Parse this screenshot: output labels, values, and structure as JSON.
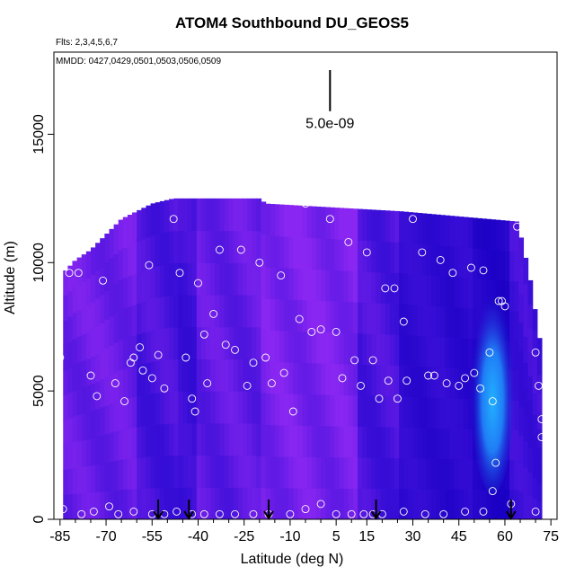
{
  "chart_data": {
    "type": "heatmap",
    "title": "ATOM4 Southbound DU_GEOS5",
    "flights_note": "Flts: 2,3,4,5,6,7",
    "dates_note": "MMDD: 0427,0429,0501,0503,0506,0509",
    "xlabel": "Latitude (deg N)",
    "ylabel": "Altitude (m)",
    "xlim": [
      -87,
      77
    ],
    "ylim": [
      0,
      18200
    ],
    "xticks": [
      -85,
      -70,
      -55,
      -40,
      -25,
      -10,
      5,
      15,
      30,
      45,
      60,
      75
    ],
    "xtick_labels": [
      "-85",
      "-70",
      "-55",
      "-40",
      "-25",
      "-10",
      "5",
      "15",
      "30",
      "45",
      "60",
      "75"
    ],
    "yticks": [
      0,
      5000,
      10000,
      15000
    ],
    "ytick_labels": [
      "0",
      "5000",
      "10000",
      "15000"
    ],
    "scale_bar_label": "5.0e-09",
    "scale_bar_altitude_range": [
      15900,
      17500
    ],
    "scale_bar_latitude": 3,
    "colors": {
      "low": "#8a26f2",
      "mid": "#3a0fd8",
      "deep": "#1a00c4",
      "high": "#20a8ff",
      "marker": "#ffffff",
      "arrow": "#000000"
    },
    "top_altitude_profile": [
      {
        "lat": -84,
        "alt": 9600
      },
      {
        "lat": -80,
        "alt": 10100
      },
      {
        "lat": -75,
        "alt": 10500
      },
      {
        "lat": -70,
        "alt": 11100
      },
      {
        "lat": -65,
        "alt": 11700
      },
      {
        "lat": -60,
        "alt": 12000
      },
      {
        "lat": -55,
        "alt": 12300
      },
      {
        "lat": -48,
        "alt": 12500
      },
      {
        "lat": -20,
        "alt": 12500
      },
      {
        "lat": -18,
        "alt": 12300
      },
      {
        "lat": 26,
        "alt": 12000
      },
      {
        "lat": 64,
        "alt": 11600
      },
      {
        "lat": 66,
        "alt": 10600
      },
      {
        "lat": 68,
        "alt": 9500
      },
      {
        "lat": 70,
        "alt": 8000
      },
      {
        "lat": 72,
        "alt": 6500
      }
    ],
    "columns": [
      {
        "from": -84,
        "to": -60,
        "value": 0.25
      },
      {
        "from": -60,
        "to": -47,
        "value": 0.45
      },
      {
        "from": -47,
        "to": -40,
        "value": 0.55
      },
      {
        "from": -40,
        "to": -20,
        "value": 0.3
      },
      {
        "from": -20,
        "to": 12,
        "value": 0.15
      },
      {
        "from": 12,
        "to": 26,
        "value": 0.45
      },
      {
        "from": 26,
        "to": 40,
        "value": 0.7
      },
      {
        "from": 40,
        "to": 50,
        "value": 0.75
      },
      {
        "from": 50,
        "to": 62,
        "value": 0.9
      },
      {
        "from": 62,
        "to": 72,
        "value": 0.55
      }
    ],
    "plume": {
      "lat_center": 56,
      "lat_halfwidth": 7,
      "alt_from": 1000,
      "alt_to": 9000,
      "peak_alt": 4000,
      "value": 1.0
    },
    "sample_points": [
      {
        "lat": -85,
        "alt": 6300
      },
      {
        "lat": -82,
        "alt": 9600
      },
      {
        "lat": -79,
        "alt": 9600
      },
      {
        "lat": -75,
        "alt": 5600
      },
      {
        "lat": -73,
        "alt": 4800
      },
      {
        "lat": -71,
        "alt": 9300
      },
      {
        "lat": -67,
        "alt": 5300
      },
      {
        "lat": -64,
        "alt": 4600
      },
      {
        "lat": -62,
        "alt": 6100
      },
      {
        "lat": -61,
        "alt": 6300
      },
      {
        "lat": -59,
        "alt": 6700
      },
      {
        "lat": -58,
        "alt": 5800
      },
      {
        "lat": -56,
        "alt": 9900
      },
      {
        "lat": -55,
        "alt": 5500
      },
      {
        "lat": -53,
        "alt": 6400
      },
      {
        "lat": -51,
        "alt": 5100
      },
      {
        "lat": -48,
        "alt": 11700
      },
      {
        "lat": -46,
        "alt": 9600
      },
      {
        "lat": -44,
        "alt": 6300
      },
      {
        "lat": -42,
        "alt": 4700
      },
      {
        "lat": -41,
        "alt": 4200
      },
      {
        "lat": -40,
        "alt": 9200
      },
      {
        "lat": -38,
        "alt": 7200
      },
      {
        "lat": -37,
        "alt": 5300
      },
      {
        "lat": -35,
        "alt": 8000
      },
      {
        "lat": -33,
        "alt": 10500
      },
      {
        "lat": -31,
        "alt": 6800
      },
      {
        "lat": -28,
        "alt": 6600
      },
      {
        "lat": -26,
        "alt": 10500
      },
      {
        "lat": -24,
        "alt": 5200
      },
      {
        "lat": -22,
        "alt": 6100
      },
      {
        "lat": -20,
        "alt": 10000
      },
      {
        "lat": -18,
        "alt": 6300
      },
      {
        "lat": -16,
        "alt": 5300
      },
      {
        "lat": -13,
        "alt": 9500
      },
      {
        "lat": -12,
        "alt": 5700
      },
      {
        "lat": -9,
        "alt": 4200
      },
      {
        "lat": -7,
        "alt": 7800
      },
      {
        "lat": -5,
        "alt": 12300
      },
      {
        "lat": -3,
        "alt": 7300
      },
      {
        "lat": 0,
        "alt": 7400
      },
      {
        "lat": 3,
        "alt": 11700
      },
      {
        "lat": 5,
        "alt": 7300
      },
      {
        "lat": 7,
        "alt": 5500
      },
      {
        "lat": 9,
        "alt": 10800
      },
      {
        "lat": 11,
        "alt": 6200
      },
      {
        "lat": 13,
        "alt": 5200
      },
      {
        "lat": 15,
        "alt": 10400
      },
      {
        "lat": 17,
        "alt": 6200
      },
      {
        "lat": 19,
        "alt": 4700
      },
      {
        "lat": 21,
        "alt": 9000
      },
      {
        "lat": 22,
        "alt": 5400
      },
      {
        "lat": 24,
        "alt": 9000
      },
      {
        "lat": 25,
        "alt": 4700
      },
      {
        "lat": 27,
        "alt": 7700
      },
      {
        "lat": 28,
        "alt": 5400
      },
      {
        "lat": 30,
        "alt": 11700
      },
      {
        "lat": 33,
        "alt": 10400
      },
      {
        "lat": 35,
        "alt": 5600
      },
      {
        "lat": 37,
        "alt": 5600
      },
      {
        "lat": 39,
        "alt": 10100
      },
      {
        "lat": 41,
        "alt": 5300
      },
      {
        "lat": 43,
        "alt": 9600
      },
      {
        "lat": 45,
        "alt": 5200
      },
      {
        "lat": 47,
        "alt": 5500
      },
      {
        "lat": 49,
        "alt": 9800
      },
      {
        "lat": 50,
        "alt": 5700
      },
      {
        "lat": 52,
        "alt": 5100
      },
      {
        "lat": 53,
        "alt": 9700
      },
      {
        "lat": 55,
        "alt": 6500
      },
      {
        "lat": 56,
        "alt": 4600
      },
      {
        "lat": 57,
        "alt": 2200
      },
      {
        "lat": 58,
        "alt": 8500
      },
      {
        "lat": 59,
        "alt": 8500
      },
      {
        "lat": 60,
        "alt": 8300
      },
      {
        "lat": 56,
        "alt": 1100
      },
      {
        "lat": 62,
        "alt": 600
      },
      {
        "lat": 64,
        "alt": 11400
      },
      {
        "lat": 66,
        "alt": 11400
      },
      {
        "lat": 70,
        "alt": 6500
      },
      {
        "lat": 71,
        "alt": 5200
      },
      {
        "lat": 72,
        "alt": 3900
      },
      {
        "lat": 72,
        "alt": 3200
      },
      {
        "lat": -84,
        "alt": 400
      },
      {
        "lat": -78,
        "alt": 200
      },
      {
        "lat": -74,
        "alt": 300
      },
      {
        "lat": -69,
        "alt": 500
      },
      {
        "lat": -66,
        "alt": 200
      },
      {
        "lat": -61,
        "alt": 300
      },
      {
        "lat": -55,
        "alt": 200
      },
      {
        "lat": -51,
        "alt": 200
      },
      {
        "lat": -47,
        "alt": 300
      },
      {
        "lat": -42,
        "alt": 200
      },
      {
        "lat": -38,
        "alt": 200
      },
      {
        "lat": -33,
        "alt": 200
      },
      {
        "lat": -28,
        "alt": 200
      },
      {
        "lat": -22,
        "alt": 200
      },
      {
        "lat": -17,
        "alt": 200
      },
      {
        "lat": -10,
        "alt": 200
      },
      {
        "lat": -5,
        "alt": 400
      },
      {
        "lat": 0,
        "alt": 600
      },
      {
        "lat": 5,
        "alt": 200
      },
      {
        "lat": 10,
        "alt": 200
      },
      {
        "lat": 14,
        "alt": 200
      },
      {
        "lat": 17,
        "alt": 200
      },
      {
        "lat": 20,
        "alt": 200
      },
      {
        "lat": 27,
        "alt": 300
      },
      {
        "lat": 34,
        "alt": 200
      },
      {
        "lat": 40,
        "alt": 200
      },
      {
        "lat": 47,
        "alt": 300
      },
      {
        "lat": 53,
        "alt": 300
      },
      {
        "lat": 70,
        "alt": 300
      }
    ],
    "flight_markers_lat": [
      -53,
      -43,
      -17,
      18,
      62
    ]
  }
}
